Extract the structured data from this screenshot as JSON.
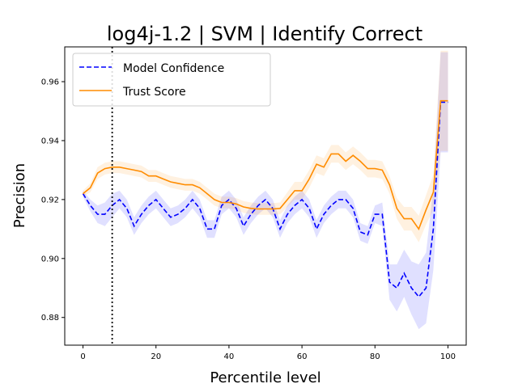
{
  "chart_data": {
    "type": "line",
    "title": "log4j-1.2 | SVM | Identify Correct",
    "xlabel": "Percentile level",
    "ylabel": "Precision",
    "xlim": [
      -5,
      105
    ],
    "ylim": [
      0.8706,
      0.9718
    ],
    "xticks": [
      0,
      20,
      40,
      60,
      80,
      100
    ],
    "yticks": [
      0.88,
      0.9,
      0.92,
      0.94,
      0.96
    ],
    "ytick_labels": [
      "0.88",
      "0.90",
      "0.92",
      "0.94",
      "0.96"
    ],
    "grid": false,
    "legend_position": "upper-left",
    "threshold_line_x": 8,
    "x": [
      0,
      2,
      4,
      6,
      8,
      10,
      12,
      14,
      16,
      18,
      20,
      22,
      24,
      26,
      28,
      30,
      32,
      34,
      36,
      38,
      40,
      42,
      44,
      46,
      48,
      50,
      52,
      54,
      56,
      58,
      60,
      62,
      64,
      66,
      68,
      70,
      72,
      74,
      76,
      78,
      80,
      82,
      84,
      86,
      88,
      90,
      92,
      94,
      96,
      98,
      100
    ],
    "series": [
      {
        "name": "Model Confidence",
        "color": "#0000ff",
        "style": "dashed",
        "values": [
          0.922,
          0.918,
          0.915,
          0.915,
          0.918,
          0.92,
          0.917,
          0.911,
          0.915,
          0.918,
          0.92,
          0.917,
          0.914,
          0.915,
          0.917,
          0.92,
          0.917,
          0.91,
          0.91,
          0.918,
          0.92,
          0.917,
          0.911,
          0.915,
          0.918,
          0.92,
          0.917,
          0.91,
          0.915,
          0.918,
          0.92,
          0.917,
          0.91,
          0.915,
          0.918,
          0.92,
          0.92,
          0.917,
          0.909,
          0.908,
          0.915,
          0.915,
          0.892,
          0.89,
          0.895,
          0.89,
          0.887,
          0.89,
          0.91,
          0.953,
          0.953
        ],
        "band": [
          0.001,
          0.002,
          0.003,
          0.004,
          0.004,
          0.003,
          0.003,
          0.003,
          0.003,
          0.003,
          0.003,
          0.003,
          0.003,
          0.003,
          0.003,
          0.003,
          0.003,
          0.003,
          0.003,
          0.003,
          0.003,
          0.003,
          0.003,
          0.003,
          0.003,
          0.003,
          0.003,
          0.003,
          0.003,
          0.003,
          0.003,
          0.003,
          0.003,
          0.003,
          0.003,
          0.003,
          0.003,
          0.003,
          0.003,
          0.003,
          0.003,
          0.004,
          0.006,
          0.008,
          0.008,
          0.009,
          0.011,
          0.012,
          0.014,
          0.017,
          0.017
        ]
      },
      {
        "name": "Trust Score",
        "color": "#ff8c00",
        "style": "solid",
        "values": [
          0.922,
          0.924,
          0.929,
          0.9305,
          0.931,
          0.931,
          0.9305,
          0.93,
          0.9295,
          0.928,
          0.928,
          0.927,
          0.926,
          0.9255,
          0.925,
          0.925,
          0.924,
          0.922,
          0.92,
          0.919,
          0.919,
          0.9185,
          0.9175,
          0.917,
          0.9168,
          0.9168,
          0.9168,
          0.917,
          0.92,
          0.923,
          0.923,
          0.927,
          0.932,
          0.931,
          0.9355,
          0.9355,
          0.933,
          0.935,
          0.933,
          0.9305,
          0.9305,
          0.93,
          0.925,
          0.917,
          0.9135,
          0.9135,
          0.91,
          0.9165,
          0.9225,
          0.9535,
          0.9535
        ],
        "band": [
          0.001,
          0.0015,
          0.002,
          0.002,
          0.002,
          0.002,
          0.002,
          0.002,
          0.002,
          0.002,
          0.002,
          0.002,
          0.002,
          0.002,
          0.002,
          0.002,
          0.002,
          0.002,
          0.002,
          0.002,
          0.002,
          0.002,
          0.002,
          0.002,
          0.002,
          0.002,
          0.002,
          0.002,
          0.0025,
          0.003,
          0.003,
          0.003,
          0.003,
          0.003,
          0.003,
          0.003,
          0.003,
          0.003,
          0.003,
          0.003,
          0.003,
          0.003,
          0.003,
          0.0035,
          0.004,
          0.004,
          0.0045,
          0.005,
          0.006,
          0.017,
          0.017
        ]
      }
    ]
  }
}
